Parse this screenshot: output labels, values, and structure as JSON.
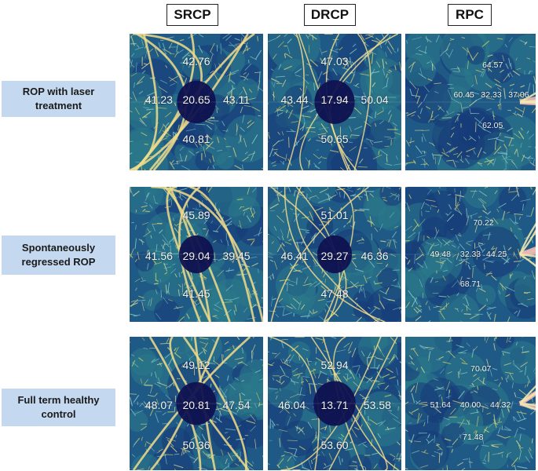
{
  "columns": [
    "SRCP",
    "DRCP",
    "RPC"
  ],
  "rows": [
    {
      "label": "ROP with laser treatment",
      "panels": [
        {
          "top": "42.76",
          "left": "41.23",
          "center": "20.65",
          "right": "43.11",
          "bottom": "40.81"
        },
        {
          "top": "47.03",
          "left": "43.44",
          "center": "17.94",
          "right": "50.04",
          "bottom": "50.65"
        },
        {
          "top": "64.57",
          "left": "60.45",
          "center": "32.33",
          "right": "37.06",
          "bottom": "62.05"
        }
      ]
    },
    {
      "label": "Spontaneously regressed ROP",
      "panels": [
        {
          "top": "45.89",
          "left": "41.56",
          "center": "29.04",
          "right": "39.45",
          "bottom": "41.45"
        },
        {
          "top": "51.01",
          "left": "46.41",
          "center": "29.27",
          "right": "46.36",
          "bottom": "47.48"
        },
        {
          "top": "70.22",
          "left": "49.48",
          "center": "32.33",
          "right": "44.25",
          "bottom": "68.71"
        }
      ]
    },
    {
      "label": "Full term healthy control",
      "panels": [
        {
          "top": "49.12",
          "left": "48.07",
          "center": "20.81",
          "right": "47.54",
          "bottom": "50.36"
        },
        {
          "top": "52.94",
          "left": "46.04",
          "center": "13.71",
          "right": "53.58",
          "bottom": "53.60"
        },
        {
          "top": "70.07",
          "left": "51.64",
          "center": "40.00",
          "right": "44.32",
          "bottom": "71.48"
        }
      ]
    }
  ],
  "colors": {
    "label_bg": "#c4d9ef",
    "panel_base": "#1e4a7a",
    "vessel": "#e8d46a",
    "large_vessel": "#f0c8c0"
  }
}
